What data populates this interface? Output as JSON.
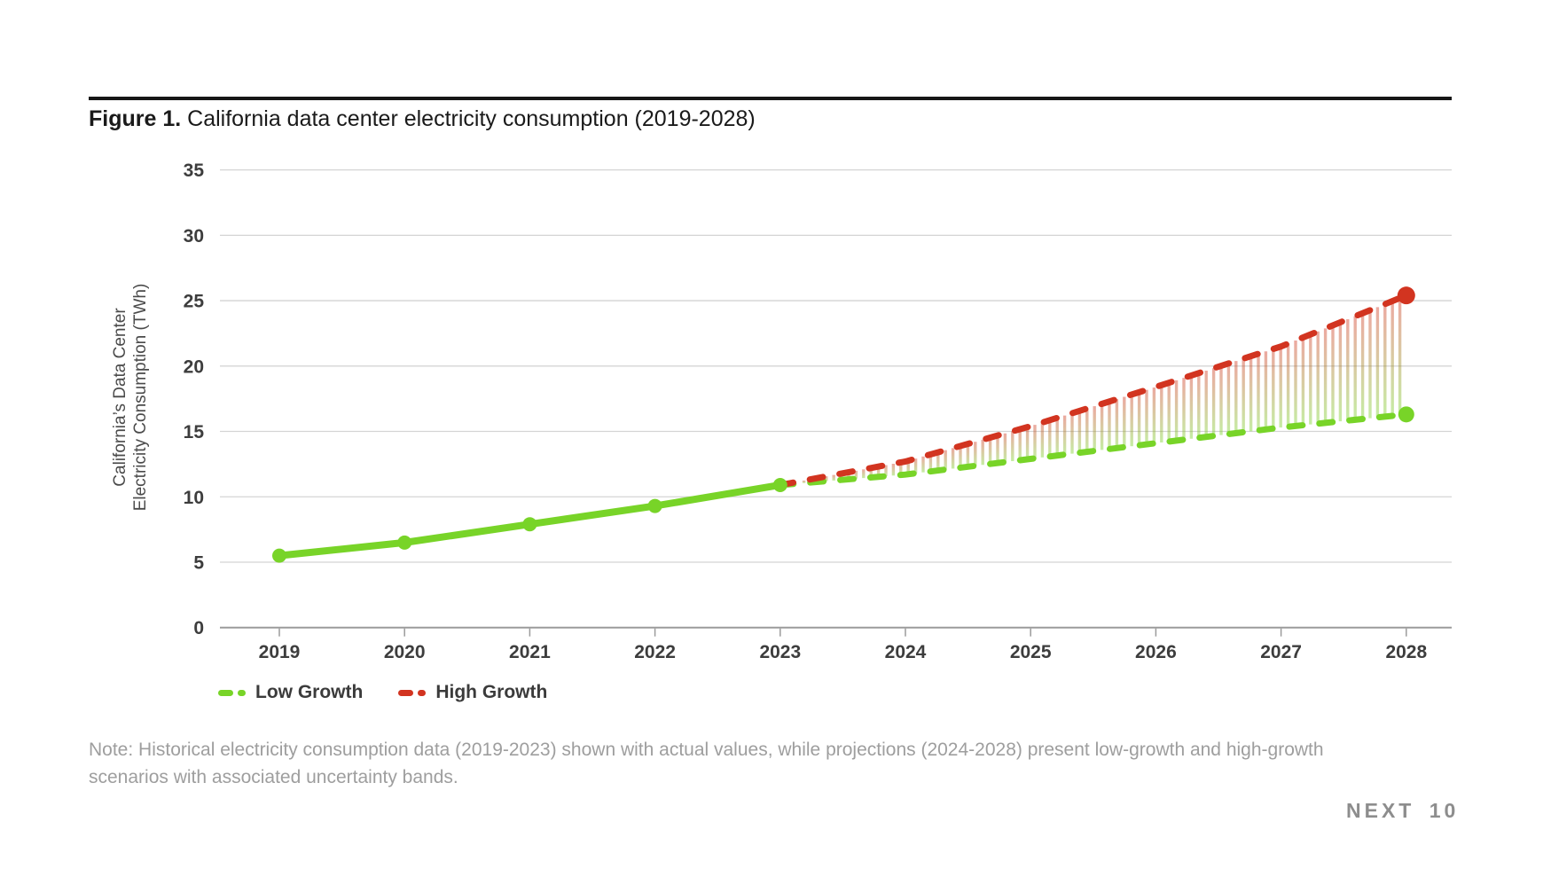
{
  "figure": {
    "title_prefix": "Figure 1.",
    "title_rest": " California data center electricity consumption (2019-2028)"
  },
  "legend": [
    {
      "label": "Low Growth",
      "color": "#78d428"
    },
    {
      "label": "High Growth",
      "color": "#d23420"
    }
  ],
  "note": "Note: Historical electricity consumption data (2019-2023) shown with actual values, while projections (2024-2028) present low-growth and high-growth scenarios with associated uncertainty bands.",
  "footer_logo": "NEXT 10",
  "chart_data": {
    "type": "line",
    "title": "Figure 1. California data center electricity consumption (2019-2028)",
    "xlabel": "",
    "ylabel_lines": [
      "California’s Data Center",
      "Electricity Consumption (TWh)"
    ],
    "x": [
      2019,
      2020,
      2021,
      2022,
      2023,
      2024,
      2025,
      2026,
      2027,
      2028
    ],
    "ylim": [
      0,
      35
    ],
    "yticks": [
      0,
      5,
      10,
      15,
      20,
      25,
      30,
      35
    ],
    "grid": "horizontal",
    "legend_position": "bottom-left",
    "series": [
      {
        "name": "Historical",
        "style": "solid",
        "markers": true,
        "color": "#78d428",
        "x": [
          2019,
          2020,
          2021,
          2022,
          2023
        ],
        "values": [
          5.5,
          6.5,
          7.9,
          9.3,
          10.9
        ]
      },
      {
        "name": "Low Growth",
        "style": "dashed",
        "end_marker": true,
        "color": "#78d428",
        "x": [
          2023,
          2024,
          2025,
          2026,
          2027,
          2028
        ],
        "values": [
          10.9,
          11.7,
          12.9,
          14.1,
          15.3,
          16.3
        ]
      },
      {
        "name": "High Growth",
        "style": "dashed",
        "end_marker": true,
        "color": "#d23420",
        "x": [
          2023,
          2024,
          2025,
          2026,
          2027,
          2028
        ],
        "values": [
          10.9,
          12.7,
          15.4,
          18.4,
          21.5,
          25.4
        ]
      }
    ],
    "band": {
      "between": [
        "High Growth",
        "Low Growth"
      ],
      "from_x": 2023,
      "to_x": 2028,
      "style": "vertical-stripes",
      "top_color": "#d23420",
      "bottom_color": "#78d428",
      "opacity": 0.42
    }
  }
}
